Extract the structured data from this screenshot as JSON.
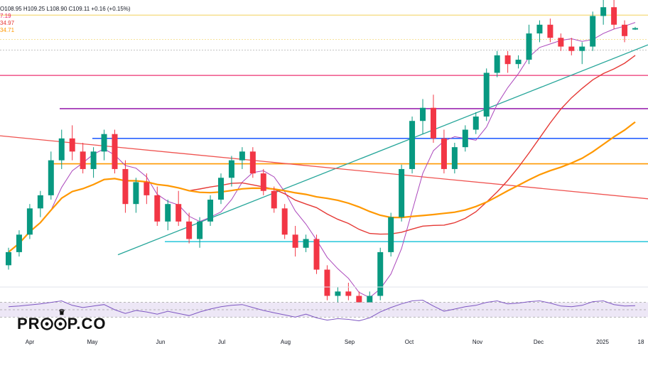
{
  "legend": {
    "ohlc": "O108.95  H109.25  L108.90  C109.11  +0.16 (+0.15%)",
    "ma_values": [
      {
        "text": "7.19",
        "color": "#e91e63"
      },
      {
        "text": "34.97",
        "color": "#e53935"
      },
      {
        "text": "34.71",
        "color": "#ff9800"
      }
    ]
  },
  "watermark": {
    "left": "PR",
    "mid": "P.CO",
    "crown_icon": "crown-icon",
    "eyes_icon": "owl-eyes-icon"
  },
  "colors": {
    "up": "#089981",
    "down": "#f23645",
    "ma_purple": "#ab47bc",
    "ma_orange": "#ff9800",
    "ma_red": "#e53935",
    "trend_green": "#26a69a",
    "trend_red": "#ef5350",
    "level_pink": "#f06292",
    "level_purple": "#9c27b0",
    "level_blue": "#2962ff",
    "level_orange": "#ff9800",
    "level_cyan": "#26c6da",
    "level_yellow": "#f2d15c",
    "rsi": "#7e57c2",
    "rsi_band": "#ede7f6"
  },
  "chart_data": {
    "type": "candlestick",
    "title": "",
    "x_tick_labels": [
      "Apr",
      "May",
      "Jun",
      "Jul",
      "Aug",
      "Sep",
      "Oct",
      "Nov",
      "Dec",
      "2025",
      "18"
    ],
    "ylim": [
      80,
      112
    ],
    "horizontal_levels": [
      110.6,
      103.7,
      99.9,
      96.5,
      93.6,
      92.0,
      84.7
    ],
    "trendlines": [
      {
        "name": "rising",
        "from": [
          "Jun",
          83.2
        ],
        "to": [
          "18",
          107.2
        ]
      },
      {
        "name": "falling",
        "from": [
          "Apr",
          96.8
        ],
        "to": [
          "18",
          89.6
        ]
      }
    ],
    "candles": [
      [
        82.0,
        84.0,
        81.5,
        83.5
      ],
      [
        83.5,
        86.0,
        83.0,
        85.5
      ],
      [
        85.5,
        89.0,
        85.0,
        88.5
      ],
      [
        88.5,
        90.5,
        87.5,
        90.0
      ],
      [
        90.0,
        95.0,
        89.5,
        94.0
      ],
      [
        94.0,
        97.5,
        93.0,
        96.5
      ],
      [
        96.5,
        98.0,
        94.0,
        95.0
      ],
      [
        95.0,
        96.0,
        92.5,
        93.0
      ],
      [
        93.0,
        95.5,
        92.0,
        95.0
      ],
      [
        95.0,
        97.5,
        94.0,
        97.0
      ],
      [
        97.0,
        97.5,
        92.5,
        93.0
      ],
      [
        93.0,
        94.0,
        88.0,
        89.0
      ],
      [
        89.0,
        92.0,
        88.0,
        91.5
      ],
      [
        91.5,
        92.5,
        89.0,
        90.0
      ],
      [
        90.0,
        91.0,
        86.5,
        87.0
      ],
      [
        87.0,
        89.5,
        86.0,
        89.0
      ],
      [
        89.0,
        90.5,
        86.5,
        87.0
      ],
      [
        87.0,
        88.0,
        84.5,
        85.0
      ],
      [
        85.0,
        87.5,
        84.0,
        87.0
      ],
      [
        87.0,
        90.0,
        86.5,
        89.5
      ],
      [
        89.5,
        92.5,
        89.0,
        92.0
      ],
      [
        92.0,
        94.5,
        91.0,
        94.0
      ],
      [
        94.0,
        95.5,
        93.0,
        95.0
      ],
      [
        95.0,
        95.5,
        92.0,
        92.5
      ],
      [
        92.5,
        93.0,
        90.0,
        90.5
      ],
      [
        90.5,
        91.0,
        88.0,
        88.5
      ],
      [
        88.5,
        89.0,
        85.0,
        85.5
      ],
      [
        85.5,
        86.5,
        83.0,
        84.0
      ],
      [
        84.0,
        85.5,
        83.5,
        85.0
      ],
      [
        85.0,
        85.5,
        81.0,
        81.5
      ],
      [
        81.5,
        82.0,
        78.0,
        78.5
      ],
      [
        78.5,
        79.5,
        77.0,
        79.0
      ],
      [
        79.0,
        80.0,
        78.0,
        78.5
      ],
      [
        78.5,
        79.0,
        76.5,
        77.0
      ],
      [
        77.0,
        79.0,
        76.5,
        78.5
      ],
      [
        78.5,
        84.0,
        78.0,
        83.5
      ],
      [
        83.5,
        88.0,
        83.0,
        87.5
      ],
      [
        87.5,
        93.5,
        87.0,
        93.0
      ],
      [
        93.0,
        99.0,
        92.5,
        98.5
      ],
      [
        98.5,
        101.0,
        97.0,
        100.0
      ],
      [
        100.0,
        101.5,
        96.0,
        96.5
      ],
      [
        96.5,
        97.5,
        92.5,
        93.0
      ],
      [
        93.0,
        96.0,
        92.5,
        95.5
      ],
      [
        95.5,
        98.0,
        95.0,
        97.5
      ],
      [
        97.5,
        99.5,
        97.0,
        99.0
      ],
      [
        99.0,
        104.5,
        98.5,
        104.0
      ],
      [
        104.0,
        106.5,
        103.5,
        106.0
      ],
      [
        106.0,
        106.5,
        104.0,
        105.0
      ],
      [
        105.0,
        106.0,
        104.5,
        105.5
      ],
      [
        105.5,
        109.5,
        105.0,
        108.5
      ],
      [
        108.5,
        110.0,
        107.5,
        109.5
      ],
      [
        109.5,
        110.2,
        107.5,
        108.0
      ],
      [
        108.0,
        108.5,
        106.5,
        107.0
      ],
      [
        107.0,
        108.0,
        106.0,
        106.5
      ],
      [
        106.5,
        107.5,
        105.0,
        107.0
      ],
      [
        107.0,
        111.0,
        106.5,
        110.5
      ],
      [
        110.5,
        113.0,
        109.5,
        111.5
      ],
      [
        111.5,
        112.5,
        109.0,
        109.5
      ],
      [
        109.5,
        110.0,
        107.5,
        108.2
      ],
      [
        108.95,
        109.25,
        108.9,
        109.11
      ]
    ],
    "rsi": {
      "ylim": [
        0,
        100
      ],
      "band": [
        30,
        70
      ],
      "values": [
        58,
        60,
        63,
        66,
        70,
        74,
        62,
        56,
        60,
        64,
        50,
        40,
        48,
        44,
        38,
        46,
        40,
        34,
        44,
        52,
        58,
        62,
        64,
        56,
        48,
        42,
        36,
        30,
        38,
        28,
        22,
        26,
        24,
        20,
        28,
        44,
        56,
        66,
        74,
        76,
        60,
        46,
        52,
        58,
        62,
        70,
        74,
        66,
        68,
        72,
        74,
        68,
        60,
        58,
        62,
        72,
        74,
        64,
        60,
        61
      ]
    }
  }
}
